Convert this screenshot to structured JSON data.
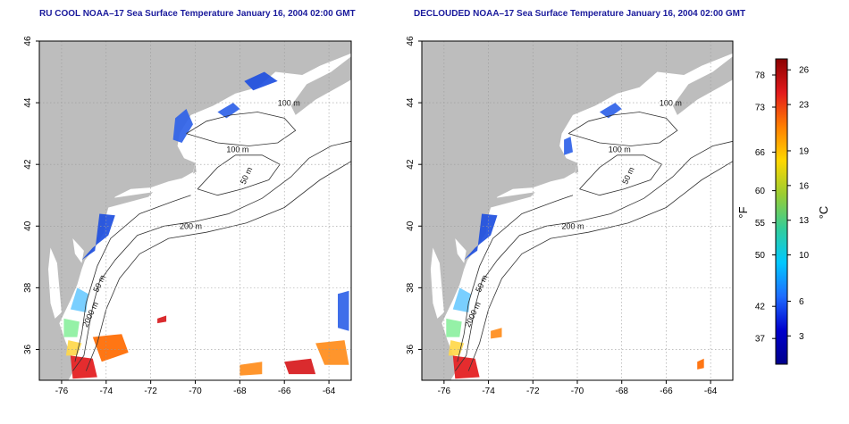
{
  "maps": [
    {
      "title": "RU COOL NOAA–17 Sea Surface Temperature January 16, 2004 02:00 GMT",
      "xlim": [
        -77,
        -63
      ],
      "ylim": [
        35,
        46
      ],
      "x_ticks": [
        "-76",
        "-74",
        "-72",
        "-70",
        "-68",
        "-66",
        "-64"
      ],
      "y_ticks": [
        "36",
        "38",
        "40",
        "42",
        "44",
        "46"
      ],
      "isobath_labels": [
        "100 m",
        "100 m",
        "50 m",
        "200 m",
        "50 m",
        "2000 m"
      ],
      "grid": true,
      "land_color": "#bdbdbd",
      "clouds_removed": false
    },
    {
      "title": "DECLOUDED NOAA–17 Sea Surface Temperature January 16, 2004 02:00 GMT",
      "xlim": [
        -77,
        -63
      ],
      "ylim": [
        35,
        46
      ],
      "x_ticks": [
        "-76",
        "-74",
        "-72",
        "-70",
        "-68",
        "-66",
        "-64"
      ],
      "y_ticks": [
        "36",
        "38",
        "40",
        "42",
        "44",
        "46"
      ],
      "isobath_labels": [
        "100 m",
        "100 m",
        "50 m",
        "200 m",
        "50 m",
        "2000 m"
      ],
      "grid": true,
      "land_color": "#bdbdbd",
      "clouds_removed": true
    }
  ],
  "colorbar": {
    "f_label": "°F",
    "c_label": "°C",
    "f_ticks": [
      "78",
      "73",
      "66",
      "60",
      "55",
      "50",
      "42",
      "37"
    ],
    "c_ticks": [
      "26",
      "23",
      "19",
      "16",
      "13",
      "10",
      "6",
      "3"
    ],
    "colors": [
      "#8b0000",
      "#e31a1c",
      "#ff7f00",
      "#ffd700",
      "#9acd32",
      "#32cd9a",
      "#00c8ff",
      "#1e6cff",
      "#0000cd",
      "#00008b"
    ]
  }
}
